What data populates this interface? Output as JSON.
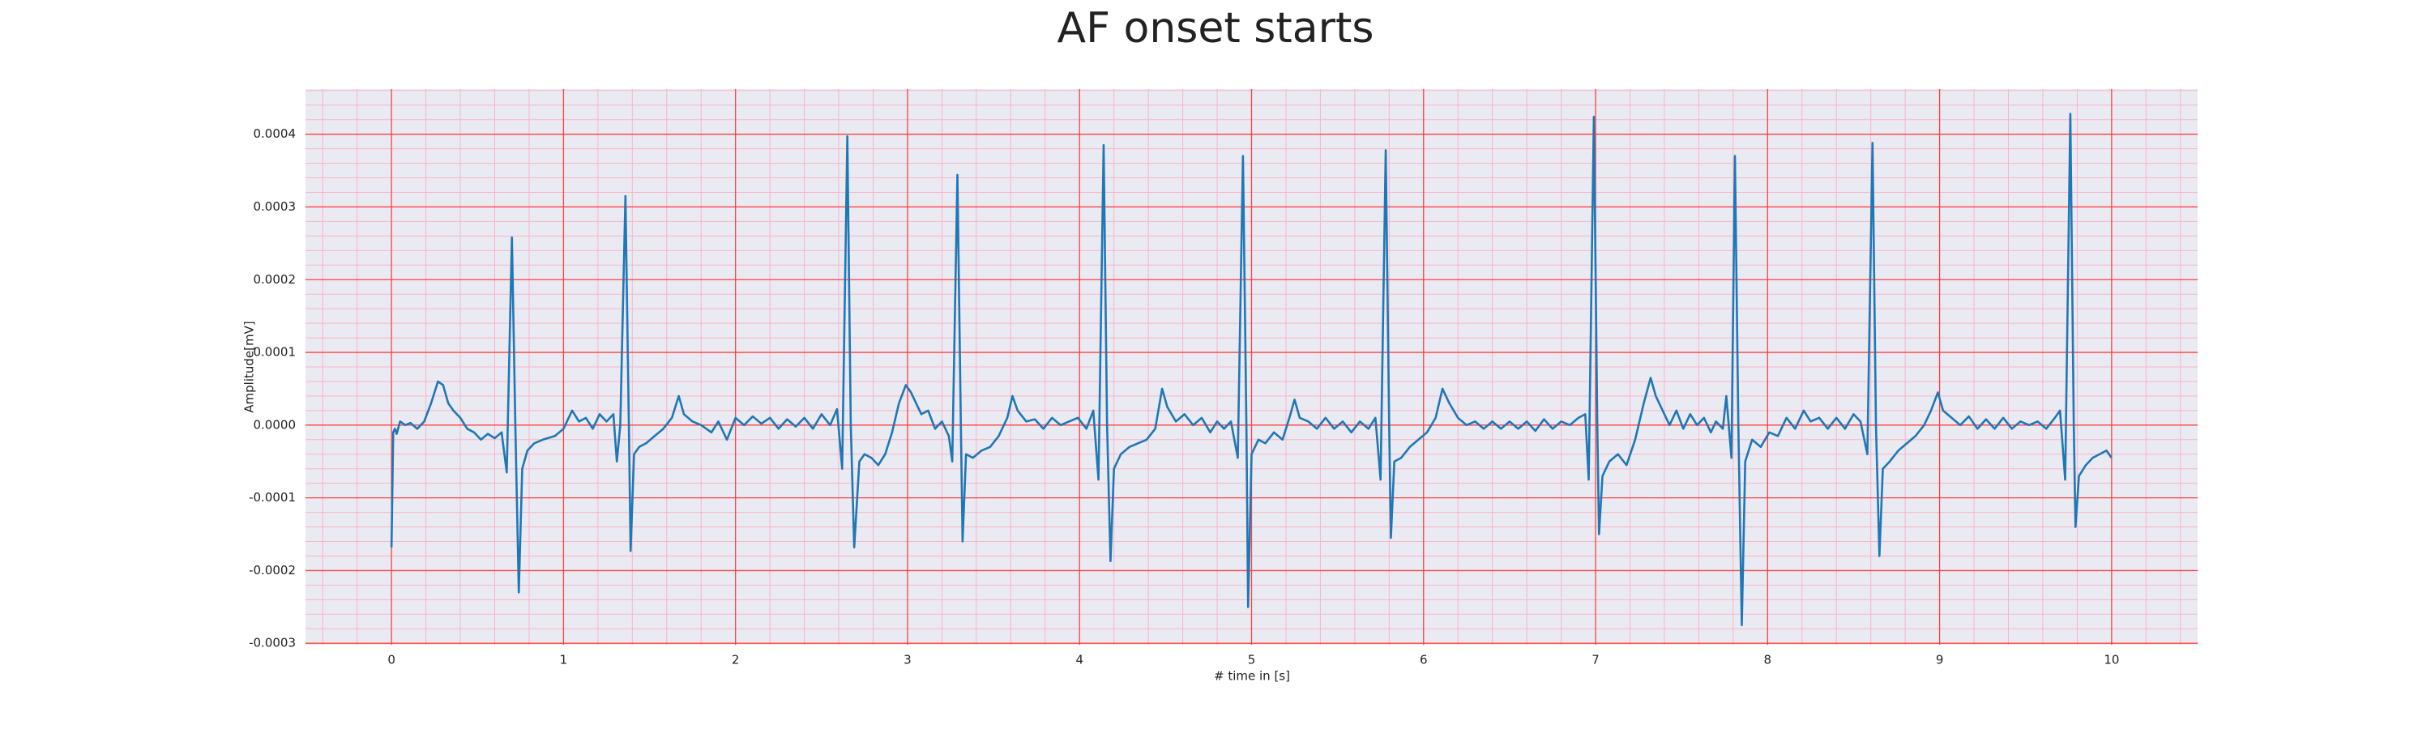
{
  "chart_data": {
    "type": "line",
    "title": "AF onset starts",
    "xlabel": "# time in [s]",
    "ylabel": "Amplitude[mV]",
    "color": "#1f77b4",
    "grid": true,
    "minor_grid": true,
    "xlim": [
      -0.5,
      10.5
    ],
    "xticks": [
      0,
      1,
      2,
      3,
      4,
      5,
      6,
      7,
      8,
      9,
      10
    ],
    "ylim": [
      -0.000302,
      0.000462
    ],
    "yticks": [
      -0.0003,
      -0.0002,
      -0.0001,
      {
        "value": 0,
        "label": "0.0000"
      },
      0.0001,
      0.0002,
      0.0003,
      0.0004
    ],
    "x": [
      0.0,
      0.01,
      0.02,
      0.03,
      0.05,
      0.08,
      0.11,
      0.15,
      0.19,
      0.23,
      0.27,
      0.3,
      0.33,
      0.36,
      0.4,
      0.44,
      0.48,
      0.52,
      0.56,
      0.6,
      0.64,
      0.67,
      0.7,
      0.72,
      0.74,
      0.76,
      0.79,
      0.83,
      0.88,
      0.95,
      1.0,
      1.05,
      1.09,
      1.13,
      1.17,
      1.21,
      1.25,
      1.29,
      1.31,
      1.33,
      1.36,
      1.38,
      1.39,
      1.41,
      1.44,
      1.48,
      1.53,
      1.58,
      1.63,
      1.67,
      1.7,
      1.75,
      1.8,
      1.86,
      1.9,
      1.95,
      2.0,
      2.05,
      2.1,
      2.15,
      2.2,
      2.25,
      2.3,
      2.35,
      2.4,
      2.45,
      2.5,
      2.55,
      2.59,
      2.62,
      2.65,
      2.67,
      2.69,
      2.72,
      2.75,
      2.79,
      2.83,
      2.87,
      2.91,
      2.95,
      2.99,
      3.02,
      3.05,
      3.08,
      3.12,
      3.16,
      3.2,
      3.24,
      3.26,
      3.29,
      3.31,
      3.32,
      3.34,
      3.38,
      3.43,
      3.48,
      3.53,
      3.58,
      3.61,
      3.64,
      3.69,
      3.74,
      3.79,
      3.84,
      3.89,
      3.94,
      3.99,
      4.04,
      4.08,
      4.11,
      4.14,
      4.16,
      4.18,
      4.2,
      4.24,
      4.29,
      4.34,
      4.39,
      4.44,
      4.48,
      4.51,
      4.56,
      4.61,
      4.66,
      4.71,
      4.76,
      4.8,
      4.84,
      4.88,
      4.92,
      4.95,
      4.97,
      4.98,
      5.0,
      5.04,
      5.08,
      5.13,
      5.18,
      5.22,
      5.25,
      5.28,
      5.33,
      5.38,
      5.43,
      5.48,
      5.53,
      5.58,
      5.63,
      5.68,
      5.72,
      5.75,
      5.78,
      5.8,
      5.81,
      5.83,
      5.87,
      5.92,
      5.97,
      6.02,
      6.07,
      6.11,
      6.15,
      6.2,
      6.25,
      6.3,
      6.35,
      6.4,
      6.45,
      6.5,
      6.55,
      6.6,
      6.65,
      6.7,
      6.75,
      6.8,
      6.85,
      6.9,
      6.94,
      6.96,
      6.99,
      7.01,
      7.02,
      7.04,
      7.08,
      7.13,
      7.18,
      7.23,
      7.28,
      7.32,
      7.35,
      7.39,
      7.43,
      7.47,
      7.51,
      7.55,
      7.59,
      7.63,
      7.67,
      7.7,
      7.74,
      7.76,
      7.79,
      7.81,
      7.83,
      7.85,
      7.87,
      7.91,
      7.96,
      8.01,
      8.06,
      8.11,
      8.16,
      8.21,
      8.25,
      8.3,
      8.35,
      8.4,
      8.45,
      8.5,
      8.54,
      8.58,
      8.61,
      8.63,
      8.65,
      8.67,
      8.71,
      8.76,
      8.81,
      8.86,
      8.91,
      8.95,
      8.99,
      9.02,
      9.07,
      9.12,
      9.17,
      9.22,
      9.27,
      9.32,
      9.37,
      9.42,
      9.47,
      9.52,
      9.57,
      9.62,
      9.67,
      9.7,
      9.73,
      9.76,
      9.78,
      9.79,
      9.81,
      9.85,
      9.89,
      9.93,
      9.97,
      10.0
    ],
    "values": [
      -0.000168,
      -1e-05,
      -5e-06,
      -1.2e-05,
      5e-06,
      0.0,
      3e-06,
      -5e-06,
      5e-06,
      3e-05,
      6e-05,
      5.5e-05,
      3e-05,
      2e-05,
      1e-05,
      -5e-06,
      -1e-05,
      -2e-05,
      -1.2e-05,
      -1.8e-05,
      -1e-05,
      -6.5e-05,
      0.000258,
      0.0,
      -0.00023,
      -6e-05,
      -3.5e-05,
      -2.5e-05,
      -2e-05,
      -1.5e-05,
      -5e-06,
      2e-05,
      5e-06,
      1e-05,
      -5e-06,
      1.5e-05,
      5e-06,
      1.5e-05,
      -5e-05,
      0.0,
      0.000315,
      0.0,
      -0.000173,
      -4e-05,
      -3e-05,
      -2.5e-05,
      -1.5e-05,
      -5e-06,
      1e-05,
      4e-05,
      1.5e-05,
      5e-06,
      0.0,
      -1e-05,
      5e-06,
      -2e-05,
      1e-05,
      0.0,
      1.2e-05,
      2e-06,
      1e-05,
      -5e-06,
      8e-06,
      -2e-06,
      1e-05,
      -5e-06,
      1.5e-05,
      0.0,
      2.2e-05,
      -6e-05,
      0.000397,
      0.0,
      -0.000168,
      -5e-05,
      -4e-05,
      -4.5e-05,
      -5.5e-05,
      -4e-05,
      -1e-05,
      3e-05,
      5.5e-05,
      4.5e-05,
      3e-05,
      1.5e-05,
      2e-05,
      -5e-06,
      5e-06,
      -1.5e-05,
      -5e-05,
      0.000344,
      0.0,
      -0.00016,
      -4e-05,
      -4.5e-05,
      -3.5e-05,
      -3e-05,
      -1.5e-05,
      1e-05,
      4e-05,
      2e-05,
      5e-06,
      8e-06,
      -5e-06,
      1e-05,
      0.0,
      5e-06,
      1e-05,
      -5e-06,
      2e-05,
      -7.5e-05,
      0.000385,
      0.0,
      -0.000187,
      -6e-05,
      -4e-05,
      -3e-05,
      -2.5e-05,
      -2e-05,
      -5e-06,
      5e-05,
      2.5e-05,
      5e-06,
      1.5e-05,
      0.0,
      1e-05,
      -1e-05,
      5e-06,
      -5e-06,
      5e-06,
      -4.5e-05,
      0.00037,
      0.0,
      -0.00025,
      -4e-05,
      -2e-05,
      -2.5e-05,
      -1e-05,
      -2e-05,
      1e-05,
      3.5e-05,
      1e-05,
      5e-06,
      -5e-06,
      1e-05,
      -5e-06,
      5e-06,
      -1e-05,
      5e-06,
      -5e-06,
      1e-05,
      -7.5e-05,
      0.000378,
      0.0,
      -0.000155,
      -5e-05,
      -4.5e-05,
      -3e-05,
      -2e-05,
      -1e-05,
      1e-05,
      5e-05,
      3e-05,
      1e-05,
      0.0,
      5e-06,
      -5e-06,
      5e-06,
      -5e-06,
      5e-06,
      -5e-06,
      5e-06,
      -8e-06,
      8e-06,
      -5e-06,
      5e-06,
      0.0,
      1e-05,
      1.5e-05,
      -7.5e-05,
      0.000424,
      0.0,
      -0.00015,
      -7e-05,
      -5e-05,
      -4e-05,
      -5.5e-05,
      -2e-05,
      3e-05,
      6.5e-05,
      4e-05,
      2e-05,
      0.0,
      2e-05,
      -5e-06,
      1.5e-05,
      0.0,
      1e-05,
      -1e-05,
      5e-06,
      -5e-06,
      4e-05,
      -4.5e-05,
      0.00037,
      0.0,
      -0.000275,
      -5e-05,
      -2e-05,
      -3e-05,
      -1e-05,
      -1.5e-05,
      1e-05,
      -5e-06,
      2e-05,
      5e-06,
      1e-05,
      -5e-06,
      1e-05,
      -5e-06,
      1.5e-05,
      5e-06,
      -4e-05,
      0.000388,
      0.0,
      -0.00018,
      -6e-05,
      -5e-05,
      -3.5e-05,
      -2.5e-05,
      -1.5e-05,
      0.0,
      2e-05,
      4.5e-05,
      2e-05,
      1e-05,
      0.0,
      1.2e-05,
      -5e-06,
      8e-06,
      -5e-06,
      1e-05,
      -5e-06,
      5e-06,
      0.0,
      5e-06,
      -5e-06,
      1e-05,
      2e-05,
      -7.5e-05,
      0.000428,
      0.0,
      -0.00014,
      -7e-05,
      -5.5e-05,
      -4.5e-05,
      -4e-05,
      -3.5e-05,
      -4.5e-05
    ]
  }
}
